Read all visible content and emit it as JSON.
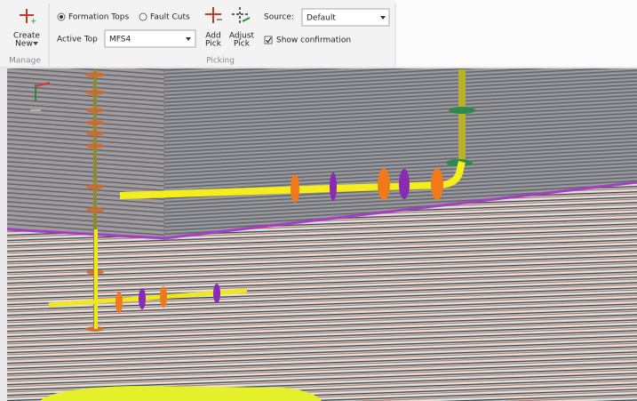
{
  "toolbar": {
    "manage": {
      "create_label": "Create",
      "create_sub": "New",
      "group_label": "Manage"
    },
    "picking": {
      "mode_options": [
        "Formation Tops",
        "Fault Cuts"
      ],
      "active_top_label": "Active Top",
      "active_top_value": "MFS4",
      "add_pick": [
        "Add",
        "Pick"
      ],
      "adjust_pick": [
        "Adjust",
        "Pick"
      ],
      "source_label": "Source:",
      "source_value": "Default",
      "show_confirmation": "Show confirmation",
      "group_label": "Picking"
    }
  }
}
